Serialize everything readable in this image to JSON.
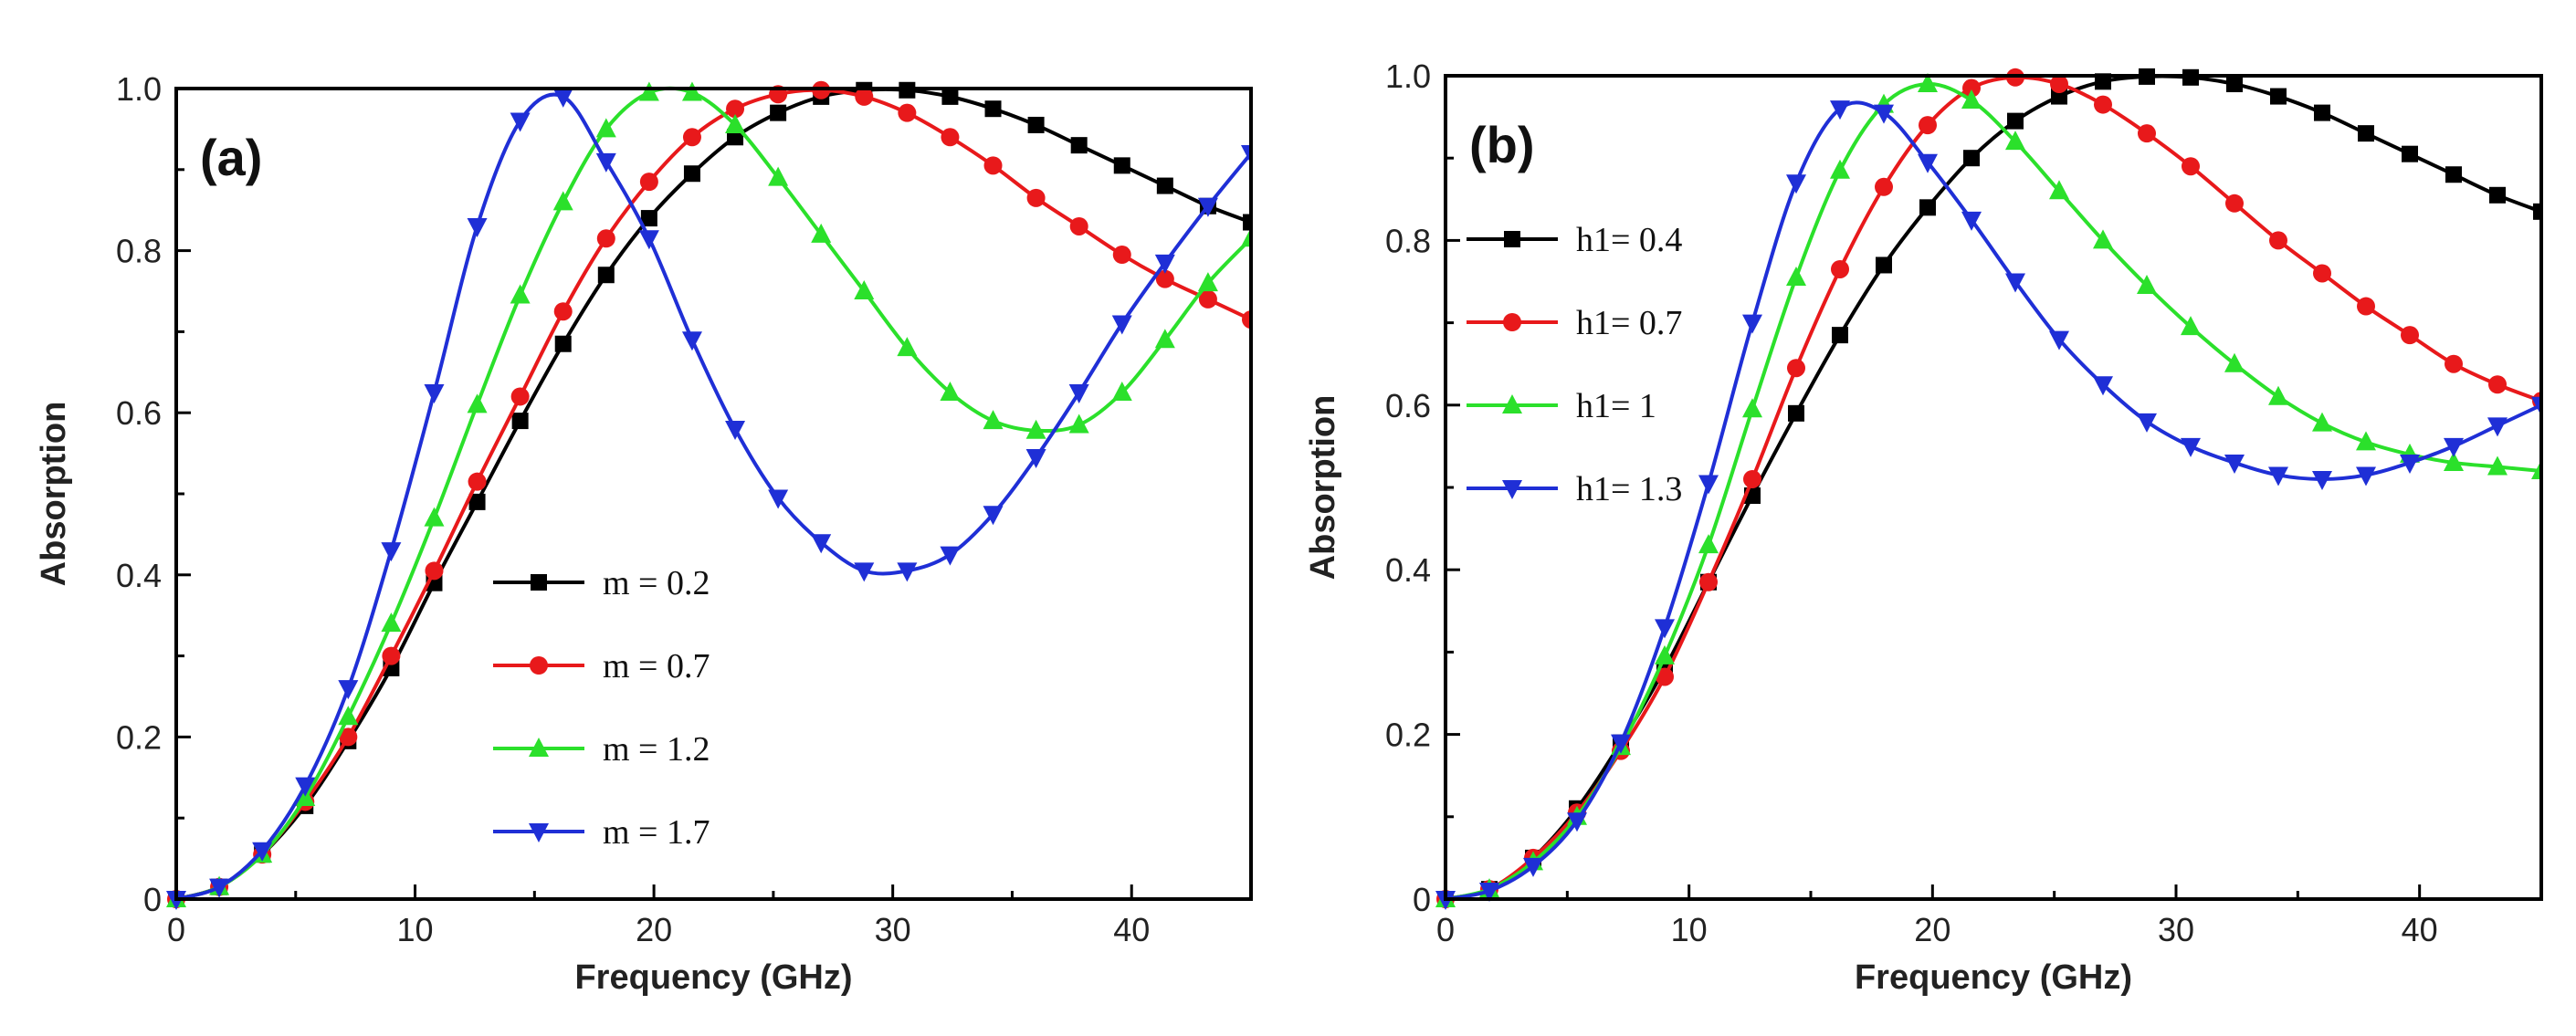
{
  "chart_data": [
    {
      "type": "line",
      "panel_label": "(a)",
      "xlabel": "Frequency (GHz)",
      "ylabel": "Absorption",
      "xlim": [
        0,
        45
      ],
      "ylim": [
        0,
        1.0
      ],
      "xticks": [
        0,
        10,
        20,
        30,
        40
      ],
      "yticks": [
        0,
        0.2,
        0.4,
        0.6,
        0.8,
        1.0
      ],
      "xtick_labels": [
        "0",
        "10",
        "20",
        "30",
        "40"
      ],
      "ytick_labels": [
        "0",
        "0.2",
        "0.4",
        "0.6",
        "0.8",
        "1.0"
      ],
      "legend_position": "center",
      "x": [
        0,
        1.8,
        3.6,
        5.4,
        7.2,
        9.0,
        10.8,
        12.6,
        14.4,
        16.2,
        18.0,
        19.8,
        21.6,
        23.4,
        25.2,
        27.0,
        28.8,
        30.6,
        32.4,
        34.2,
        36.0,
        37.8,
        39.6,
        41.4,
        43.2,
        45.0
      ],
      "series": [
        {
          "name": "m = 0.2",
          "label": "m = 0.2",
          "color": "#000000",
          "marker": "square",
          "values": [
            0,
            0.015,
            0.055,
            0.115,
            0.195,
            0.285,
            0.39,
            0.49,
            0.59,
            0.685,
            0.77,
            0.84,
            0.895,
            0.94,
            0.97,
            0.99,
            0.998,
            0.998,
            0.99,
            0.975,
            0.955,
            0.93,
            0.905,
            0.88,
            0.855,
            0.835
          ]
        },
        {
          "name": "m = 0.7",
          "label": "m =  0.7",
          "color": "#e8191b",
          "marker": "circle",
          "values": [
            0,
            0.015,
            0.055,
            0.12,
            0.2,
            0.3,
            0.405,
            0.515,
            0.62,
            0.725,
            0.815,
            0.885,
            0.94,
            0.975,
            0.993,
            0.998,
            0.99,
            0.97,
            0.94,
            0.905,
            0.865,
            0.83,
            0.795,
            0.765,
            0.74,
            0.715
          ]
        },
        {
          "name": "m = 1.2",
          "label": "m = 1.2",
          "color": "#2be02b",
          "marker": "triangle-up",
          "values": [
            0,
            0.015,
            0.055,
            0.125,
            0.225,
            0.34,
            0.47,
            0.61,
            0.745,
            0.86,
            0.95,
            0.995,
            0.995,
            0.955,
            0.89,
            0.82,
            0.75,
            0.68,
            0.625,
            0.59,
            0.578,
            0.585,
            0.625,
            0.69,
            0.76,
            0.815
          ]
        },
        {
          "name": "m = 1.7",
          "label": "m = 1.7",
          "color": "#1f2fd6",
          "marker": "triangle-down",
          "values": [
            0,
            0.015,
            0.06,
            0.14,
            0.26,
            0.43,
            0.625,
            0.83,
            0.96,
            0.99,
            0.91,
            0.815,
            0.69,
            0.58,
            0.495,
            0.44,
            0.405,
            0.405,
            0.425,
            0.475,
            0.545,
            0.625,
            0.71,
            0.785,
            0.855,
            0.92
          ]
        }
      ]
    },
    {
      "type": "line",
      "panel_label": "(b)",
      "xlabel": "Frequency (GHz)",
      "ylabel": "Absorption",
      "xlim": [
        0,
        45
      ],
      "ylim": [
        0,
        1.0
      ],
      "xticks": [
        0,
        10,
        20,
        30,
        40
      ],
      "yticks": [
        0,
        0.2,
        0.4,
        0.6,
        0.8,
        1.0
      ],
      "xtick_labels": [
        "0",
        "10",
        "20",
        "30",
        "40"
      ],
      "ytick_labels": [
        "0",
        "0.2",
        "0.4",
        "0.6",
        "0.8",
        "1.0"
      ],
      "legend_position": "upper-left",
      "x": [
        0,
        1.8,
        3.6,
        5.4,
        7.2,
        9.0,
        10.8,
        12.6,
        14.4,
        16.2,
        18.0,
        19.8,
        21.6,
        23.4,
        25.2,
        27.0,
        28.8,
        30.6,
        32.4,
        34.2,
        36.0,
        37.8,
        39.6,
        41.4,
        43.2,
        45.0
      ],
      "series": [
        {
          "name": "h1= 0.4",
          "label": "h1= 0.4",
          "color": "#000000",
          "marker": "square",
          "values": [
            0,
            0.012,
            0.05,
            0.11,
            0.19,
            0.28,
            0.385,
            0.49,
            0.59,
            0.685,
            0.77,
            0.84,
            0.9,
            0.945,
            0.975,
            0.993,
            0.999,
            0.998,
            0.99,
            0.975,
            0.955,
            0.93,
            0.905,
            0.88,
            0.855,
            0.835
          ]
        },
        {
          "name": "h1= 0.7",
          "label": "h1= 0.7",
          "color": "#e8191b",
          "marker": "circle",
          "values": [
            0,
            0.012,
            0.05,
            0.105,
            0.18,
            0.27,
            0.385,
            0.51,
            0.645,
            0.765,
            0.865,
            0.94,
            0.985,
            0.998,
            0.99,
            0.965,
            0.93,
            0.89,
            0.845,
            0.8,
            0.76,
            0.72,
            0.685,
            0.65,
            0.625,
            0.605
          ]
        },
        {
          "name": "h1= 1",
          "label": "h1= 1",
          "color": "#2be02b",
          "marker": "triangle-up",
          "values": [
            0,
            0.012,
            0.045,
            0.1,
            0.185,
            0.295,
            0.43,
            0.595,
            0.755,
            0.885,
            0.965,
            0.99,
            0.97,
            0.92,
            0.86,
            0.8,
            0.745,
            0.695,
            0.65,
            0.61,
            0.578,
            0.555,
            0.54,
            0.53,
            0.525,
            0.52
          ]
        },
        {
          "name": "h1= 1.3",
          "label": "h1= 1.3",
          "color": "#1f2fd6",
          "marker": "triangle-down",
          "values": [
            0,
            0.01,
            0.04,
            0.095,
            0.19,
            0.33,
            0.505,
            0.7,
            0.87,
            0.96,
            0.955,
            0.895,
            0.825,
            0.75,
            0.68,
            0.625,
            0.58,
            0.55,
            0.53,
            0.515,
            0.51,
            0.515,
            0.53,
            0.55,
            0.575,
            0.6
          ]
        }
      ]
    }
  ]
}
